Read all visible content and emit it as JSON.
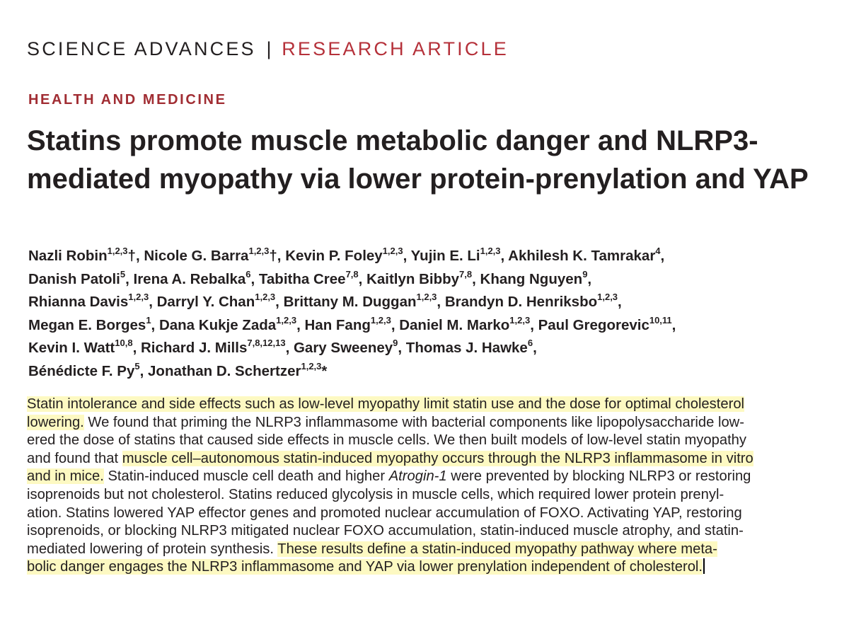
{
  "header": {
    "journal_name": "SCIENCE ADVANCES",
    "separator": "|",
    "article_type": "RESEARCH ARTICLE"
  },
  "section": "HEALTH AND MEDICINE",
  "title": "Statins promote muscle metabolic danger and NLRP3-mediated myopathy via lower protein-prenylation and YAP",
  "authors": [
    [
      {
        "name": "Nazli Robin",
        "sup": "1,2,3",
        "mark": "†",
        "sep": ", "
      },
      {
        "name": "Nicole G. Barra",
        "sup": "1,2,3",
        "mark": "†",
        "sep": ", "
      },
      {
        "name": "Kevin P. Foley",
        "sup": "1,2,3",
        "mark": "",
        "sep": ", "
      },
      {
        "name": "Yujin E. Li",
        "sup": "1,2,3",
        "mark": "",
        "sep": ", "
      },
      {
        "name": "Akhilesh K. Tamrakar",
        "sup": "4",
        "mark": "",
        "sep": ","
      }
    ],
    [
      {
        "name": "Danish Patoli",
        "sup": "5",
        "mark": "",
        "sep": ", "
      },
      {
        "name": "Irena A. Rebalka",
        "sup": "6",
        "mark": "",
        "sep": ", "
      },
      {
        "name": "Tabitha Cree",
        "sup": "7,8",
        "mark": "",
        "sep": ", "
      },
      {
        "name": "Kaitlyn Bibby",
        "sup": "7,8",
        "mark": "",
        "sep": ", "
      },
      {
        "name": "Khang Nguyen",
        "sup": "9",
        "mark": "",
        "sep": ","
      }
    ],
    [
      {
        "name": "Rhianna Davis",
        "sup": "1,2,3",
        "mark": "",
        "sep": ", "
      },
      {
        "name": "Darryl Y. Chan",
        "sup": "1,2,3",
        "mark": "",
        "sep": ", "
      },
      {
        "name": "Brittany M. Duggan",
        "sup": "1,2,3",
        "mark": "",
        "sep": ", "
      },
      {
        "name": "Brandyn D. Henriksbo",
        "sup": "1,2,3",
        "mark": "",
        "sep": ","
      }
    ],
    [
      {
        "name": "Megan E. Borges",
        "sup": "1",
        "mark": "",
        "sep": ", "
      },
      {
        "name": "Dana Kukje Zada",
        "sup": "1,2,3",
        "mark": "",
        "sep": ", "
      },
      {
        "name": "Han Fang",
        "sup": "1,2,3",
        "mark": "",
        "sep": ", "
      },
      {
        "name": "Daniel M. Marko",
        "sup": "1,2,3",
        "mark": "",
        "sep": ", "
      },
      {
        "name": "Paul Gregorevic",
        "sup": "10,11",
        "mark": "",
        "sep": ","
      }
    ],
    [
      {
        "name": "Kevin I. Watt",
        "sup": "10,8",
        "mark": "",
        "sep": ", "
      },
      {
        "name": "Richard J. Mills",
        "sup": "7,8,12,13",
        "mark": "",
        "sep": ", "
      },
      {
        "name": "Gary Sweeney",
        "sup": "9",
        "mark": "",
        "sep": ", "
      },
      {
        "name": "Thomas J. Hawke",
        "sup": "6",
        "mark": "",
        "sep": ","
      }
    ],
    [
      {
        "name": "Bénédicte F. Py",
        "sup": "5",
        "mark": "",
        "sep": ", "
      },
      {
        "name": "Jonathan D. Schertzer",
        "sup": "1,2,3",
        "mark": "*",
        "sep": ""
      }
    ]
  ],
  "abstract": [
    [
      {
        "t": "Statin intolerance and side effects such as low-level myopathy limit statin use and the dose for optimal cholesterol",
        "h": true
      }
    ],
    [
      {
        "t": "lowering.",
        "h": true
      },
      {
        "t": " We found that priming the NLRP3 inflammasome with bacterial components like lipopolysaccharide low-",
        "h": false
      }
    ],
    [
      {
        "t": "ered the dose of statins that caused side effects in muscle cells. We then built models of low-level statin myopathy",
        "h": false
      }
    ],
    [
      {
        "t": "and found that ",
        "h": false
      },
      {
        "t": "muscle cell–autonomous statin-induced myopathy occurs through the NLRP3 inflammasome in vitro",
        "h": true
      }
    ],
    [
      {
        "t": "and in mice.",
        "h": true
      },
      {
        "t": " Statin-induced muscle cell death and higher ",
        "h": false
      },
      {
        "t": "Atrogin-1",
        "h": false,
        "i": true
      },
      {
        "t": " were prevented by blocking NLRP3 or restoring",
        "h": false
      }
    ],
    [
      {
        "t": "isoprenoids but not cholesterol. Statins reduced glycolysis in muscle cells, which required lower protein prenyl-",
        "h": false
      }
    ],
    [
      {
        "t": "ation. Statins lowered YAP effector genes and promoted nuclear accumulation of FOXO. Activating YAP, restoring",
        "h": false
      }
    ],
    [
      {
        "t": "isoprenoids, or blocking NLRP3 mitigated nuclear FOXO accumulation, statin-induced muscle atrophy, and statin-",
        "h": false
      }
    ],
    [
      {
        "t": "mediated lowering of protein synthesis. ",
        "h": false
      },
      {
        "t": "These results define a statin-induced myopathy pathway where meta-",
        "h": true
      }
    ],
    [
      {
        "t": "bolic danger engages the NLRP3 inflammasome and YAP via lower prenylation independent of cholesterol.",
        "h": true,
        "caret": true
      }
    ]
  ]
}
